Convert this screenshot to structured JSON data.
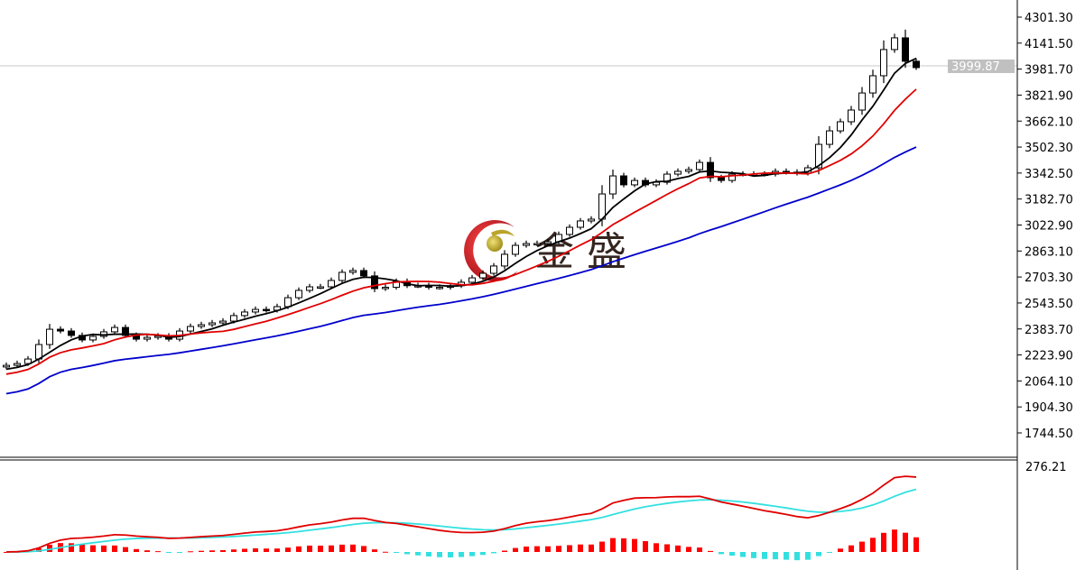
{
  "chart_data": [
    {
      "type": "candlestick",
      "panel": "price",
      "y_ticks": [
        "4301.30",
        "4141.50",
        "3981.70",
        "3821.90",
        "3662.10",
        "3502.30",
        "3342.50",
        "3182.70",
        "3022.90",
        "2863.10",
        "2703.30",
        "2543.50",
        "2383.70",
        "2223.90",
        "2064.10",
        "1904.30",
        "1744.50"
      ],
      "ylim": [
        1744.5,
        4301.3
      ],
      "current_price": "3999.87",
      "close": [
        2160,
        2171,
        2199,
        2288,
        2382,
        2371,
        2344,
        2316,
        2338,
        2366,
        2393,
        2344,
        2321,
        2332,
        2340,
        2321,
        2371,
        2399,
        2410,
        2421,
        2432,
        2466,
        2488,
        2504,
        2499,
        2521,
        2576,
        2621,
        2643,
        2643,
        2682,
        2732,
        2743,
        2710,
        2632,
        2640,
        2676,
        2650,
        2650,
        2640,
        2640,
        2650,
        2671,
        2698,
        2726,
        2771,
        2843,
        2898,
        2909,
        2909,
        2920,
        2965,
        3009,
        3048,
        3059,
        3214,
        3325,
        3270,
        3297,
        3270,
        3286,
        3336,
        3353,
        3364,
        3408,
        3314,
        3297,
        3336,
        3336,
        3336,
        3336,
        3353,
        3348,
        3342,
        3375,
        3519,
        3602,
        3658,
        3730,
        3835,
        3941,
        4102,
        4174,
        4030,
        3991
      ],
      "moving_averages": [
        {
          "period": 5,
          "color": "#000000"
        },
        {
          "period": 10,
          "color": "#e00000"
        },
        {
          "period": 30,
          "color": "#0000cc"
        }
      ],
      "watermark": "金 盛"
    },
    {
      "type": "macd",
      "panel": "indicator",
      "y_ticks": [
        "276.21"
      ],
      "colors": {
        "dif": "#e00000",
        "dea": "#33e0e0",
        "hist_pos": "#ff0000",
        "hist_neg": "#33e0e0"
      }
    }
  ]
}
